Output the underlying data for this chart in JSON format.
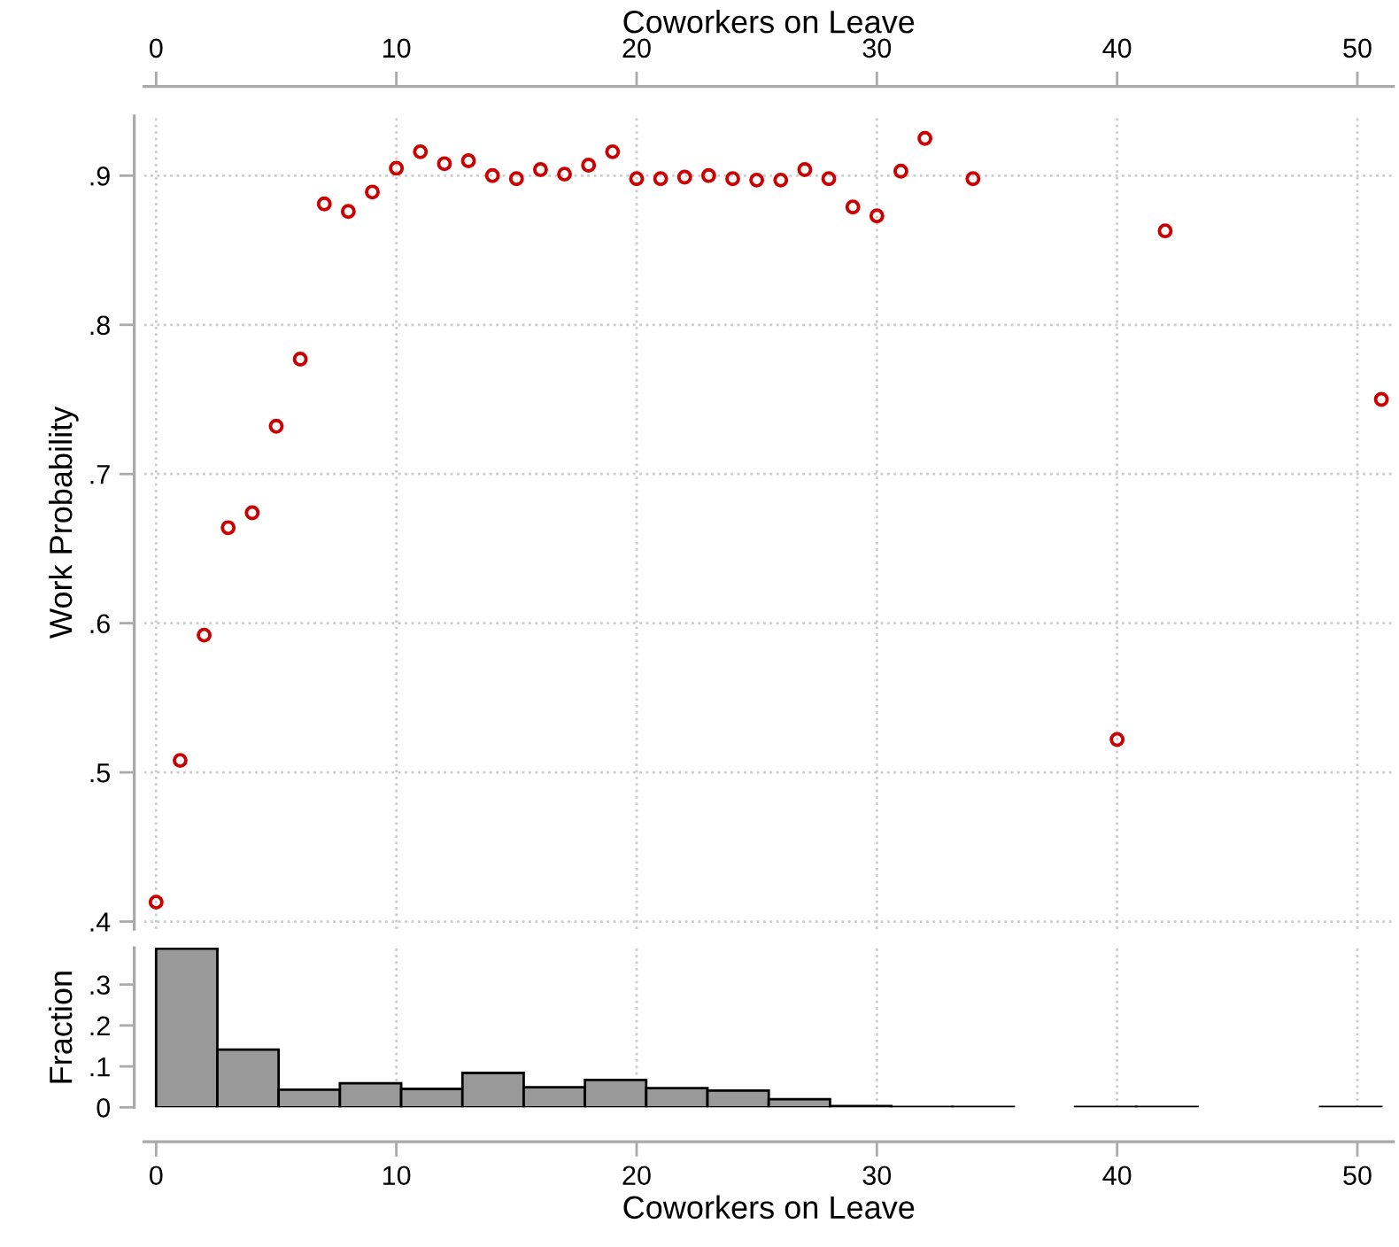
{
  "chart_data": [
    {
      "type": "scatter",
      "xlabel": "Coworkers on Leave",
      "ylabel": "Work Probability",
      "x": [
        0,
        1,
        2,
        3,
        4,
        5,
        6,
        7,
        8,
        9,
        10,
        11,
        12,
        13,
        14,
        15,
        16,
        17,
        18,
        19,
        20,
        21,
        22,
        23,
        24,
        25,
        26,
        27,
        28,
        29,
        30,
        31,
        32,
        34,
        40,
        42,
        51
      ],
      "values": [
        0.413,
        0.508,
        0.592,
        0.664,
        0.674,
        0.732,
        0.777,
        0.881,
        0.876,
        0.889,
        0.905,
        0.916,
        0.908,
        0.91,
        0.9,
        0.898,
        0.904,
        0.901,
        0.907,
        0.916,
        0.898,
        0.898,
        0.899,
        0.9,
        0.898,
        0.897,
        0.897,
        0.904,
        0.898,
        0.879,
        0.873,
        0.903,
        0.925,
        0.898,
        0.522,
        0.863,
        0.75
      ],
      "color": "#cc0000",
      "marker": "circle",
      "xlim": [
        -0.5,
        51.5
      ],
      "xticks": [
        0,
        10,
        20,
        30,
        40,
        50
      ],
      "ylim": [
        0.395,
        0.94
      ],
      "yticks": [
        {
          "value": 0.4,
          "label": ".4"
        },
        {
          "value": 0.5,
          "label": ".5"
        },
        {
          "value": 0.6,
          "label": ".6"
        },
        {
          "value": 0.7,
          "label": ".7"
        },
        {
          "value": 0.8,
          "label": ".8"
        },
        {
          "value": 0.9,
          "label": ".9"
        }
      ],
      "grid": true
    },
    {
      "type": "histogram",
      "xlabel": "Coworkers on Leave",
      "ylabel": "Fraction",
      "bins": [
        0,
        2.55,
        5.1,
        7.65,
        10.2,
        12.75,
        15.3,
        17.85,
        20.4,
        22.95,
        25.5,
        28.05,
        30.6,
        33.15,
        35.7,
        38.25,
        40.8,
        43.35,
        45.9,
        48.45,
        51
      ],
      "values": [
        0.388,
        0.141,
        0.043,
        0.059,
        0.045,
        0.084,
        0.049,
        0.067,
        0.047,
        0.041,
        0.02,
        0.003,
        0.001,
        0.001,
        0,
        0.001,
        0.001,
        0,
        0,
        0.001
      ],
      "color": "#999999",
      "xlim": [
        -0.5,
        51.5
      ],
      "xticks": [
        0,
        10,
        20,
        30,
        40,
        50
      ],
      "ylim": [
        0,
        0.39
      ],
      "yticks": [
        0,
        {
          "value": 0.1,
          "label": ".1"
        },
        {
          "value": 0.2,
          "label": ".2"
        },
        {
          "value": 0.3,
          "label": ".3"
        }
      ],
      "grid": "x"
    }
  ]
}
